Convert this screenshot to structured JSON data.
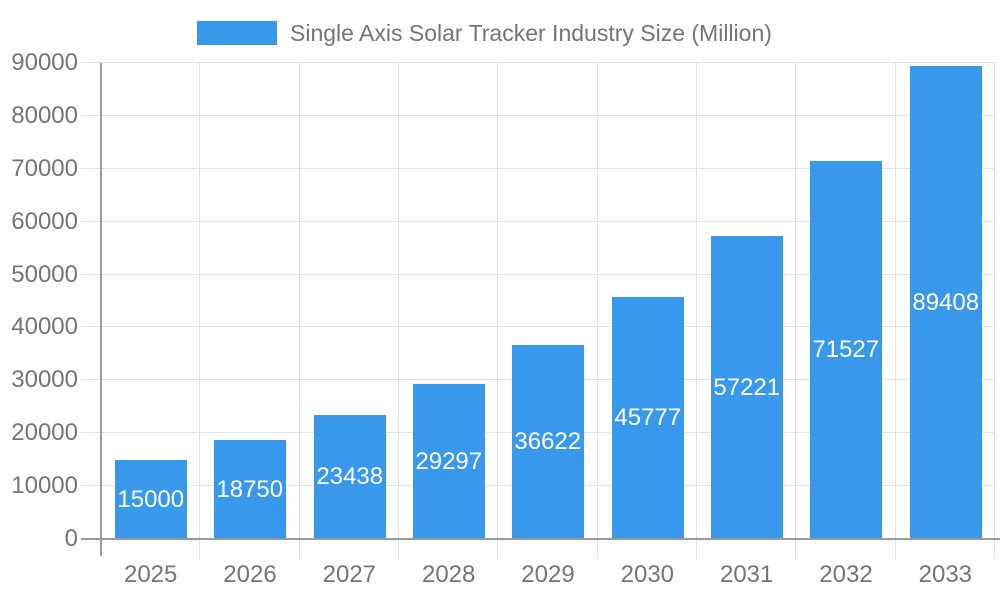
{
  "chart_data": {
    "type": "bar",
    "title": "Single Axis Solar Tracker Industry Size (Million)",
    "categories": [
      "2025",
      "2026",
      "2027",
      "2028",
      "2029",
      "2030",
      "2031",
      "2032",
      "2033"
    ],
    "values": [
      15000,
      18750,
      23438,
      29297,
      36622,
      45777,
      57221,
      71527,
      89408
    ],
    "xlabel": "",
    "ylabel": "",
    "ylim": [
      0,
      90000
    ],
    "yticks": [
      0,
      10000,
      20000,
      30000,
      40000,
      50000,
      60000,
      70000,
      80000,
      90000
    ],
    "grid": true,
    "legend_position": "top",
    "value_labels": "white, centered inside bars",
    "colors": {
      "bar": "#3899ec",
      "value_label": "#ffffff",
      "grid_line": "#e2e2e2",
      "axis_line": "#9a9a9a",
      "tick_text": "#757575",
      "legend_text": "#757575",
      "background": "#ffffff"
    }
  }
}
